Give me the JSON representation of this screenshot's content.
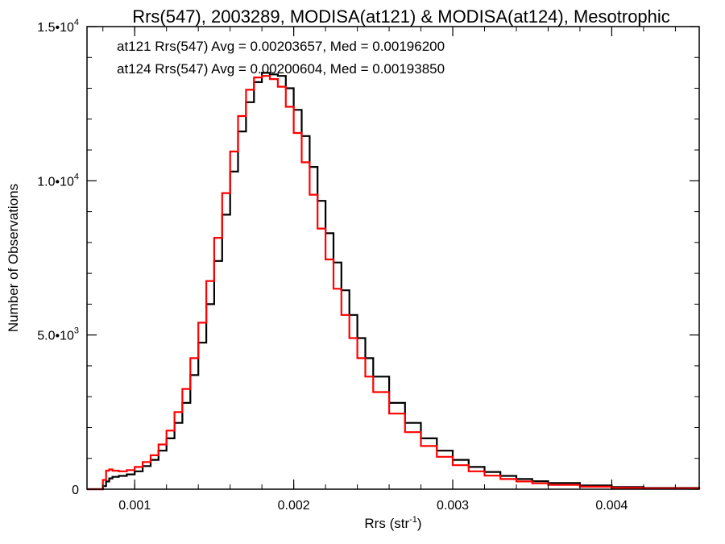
{
  "chart_data": {
    "type": "line",
    "style": "step-histogram",
    "title": "Rrs(547), 2003289, MODISA(at121) & MODISA(at124), Mesotrophic",
    "xlabel": "Rrs (str",
    "xlabel_sup": "-1",
    "xlabel_close": ")",
    "ylabel": "Number of Observations",
    "xlim": [
      0.0007,
      0.00455
    ],
    "ylim": [
      0,
      15000
    ],
    "grid": false,
    "xticks": [
      {
        "value": 0.001,
        "label": "0.001"
      },
      {
        "value": 0.002,
        "label": "0.002"
      },
      {
        "value": 0.003,
        "label": "0.003"
      },
      {
        "value": 0.004,
        "label": "0.004"
      }
    ],
    "yticks": [
      {
        "value": 0,
        "label": "0",
        "sup": ""
      },
      {
        "value": 5000,
        "label": "5.0•10",
        "sup": "3"
      },
      {
        "value": 10000,
        "label": "1.0•10",
        "sup": "4"
      },
      {
        "value": 15000,
        "label": "1.5•10",
        "sup": "4"
      }
    ],
    "annotations": [
      {
        "text": "at121 Rrs(547) Avg = 0.00203657, Med = 0.00196200",
        "color": "#000000"
      },
      {
        "text": "at124 Rrs(547) Avg = 0.00200604, Med = 0.00193850",
        "color": "#ff0000"
      }
    ],
    "series": [
      {
        "color": "#000000",
        "x": [
          0.0007,
          0.00079,
          0.0008,
          0.00082,
          0.00084,
          0.00086,
          0.0009,
          0.00095,
          0.001,
          0.00105,
          0.0011,
          0.00115,
          0.0012,
          0.00125,
          0.0013,
          0.00135,
          0.0014,
          0.00145,
          0.0015,
          0.00155,
          0.0016,
          0.00165,
          0.0017,
          0.00175,
          0.0018,
          0.00185,
          0.0019,
          0.00195,
          0.002,
          0.00205,
          0.0021,
          0.00215,
          0.0022,
          0.00225,
          0.0023,
          0.00235,
          0.0024,
          0.00245,
          0.0025,
          0.0026,
          0.0027,
          0.0028,
          0.0029,
          0.003,
          0.0031,
          0.0032,
          0.0033,
          0.0034,
          0.0035,
          0.0036,
          0.0038,
          0.004,
          0.0042,
          0.00455
        ],
        "y": [
          0,
          0,
          100,
          250,
          350,
          400,
          430,
          480,
          580,
          750,
          950,
          1250,
          1650,
          2150,
          2800,
          3700,
          4750,
          6000,
          7400,
          8900,
          10300,
          11600,
          12550,
          13200,
          13500,
          13450,
          13400,
          13000,
          12300,
          11450,
          10450,
          9350,
          8300,
          7350,
          6450,
          5650,
          4900,
          4250,
          3650,
          2800,
          2150,
          1650,
          1250,
          950,
          720,
          560,
          430,
          330,
          260,
          200,
          120,
          70,
          40,
          0
        ]
      },
      {
        "color": "#ff0000",
        "x": [
          0.0007,
          0.00079,
          0.0008,
          0.00082,
          0.00084,
          0.00086,
          0.0009,
          0.00095,
          0.001,
          0.00105,
          0.0011,
          0.00115,
          0.0012,
          0.00125,
          0.0013,
          0.00135,
          0.0014,
          0.00145,
          0.0015,
          0.00155,
          0.0016,
          0.00165,
          0.0017,
          0.00175,
          0.0018,
          0.00185,
          0.0019,
          0.00195,
          0.002,
          0.00205,
          0.0021,
          0.00215,
          0.0022,
          0.00225,
          0.0023,
          0.00235,
          0.0024,
          0.00245,
          0.0025,
          0.0026,
          0.0027,
          0.0028,
          0.0029,
          0.003,
          0.0031,
          0.0032,
          0.0033,
          0.0034,
          0.0035,
          0.0036,
          0.0038,
          0.004,
          0.0042,
          0.00455
        ],
        "y": [
          0,
          0,
          300,
          600,
          640,
          600,
          580,
          620,
          720,
          880,
          1100,
          1450,
          1900,
          2500,
          3250,
          4250,
          5400,
          6750,
          8150,
          9600,
          10950,
          12100,
          12950,
          13350,
          13400,
          13300,
          13050,
          12400,
          11550,
          10600,
          9550,
          8450,
          7450,
          6500,
          5650,
          4900,
          4250,
          3650,
          3150,
          2450,
          1850,
          1400,
          1050,
          780,
          580,
          440,
          330,
          250,
          190,
          140,
          80,
          45,
          25,
          0
        ]
      }
    ]
  }
}
